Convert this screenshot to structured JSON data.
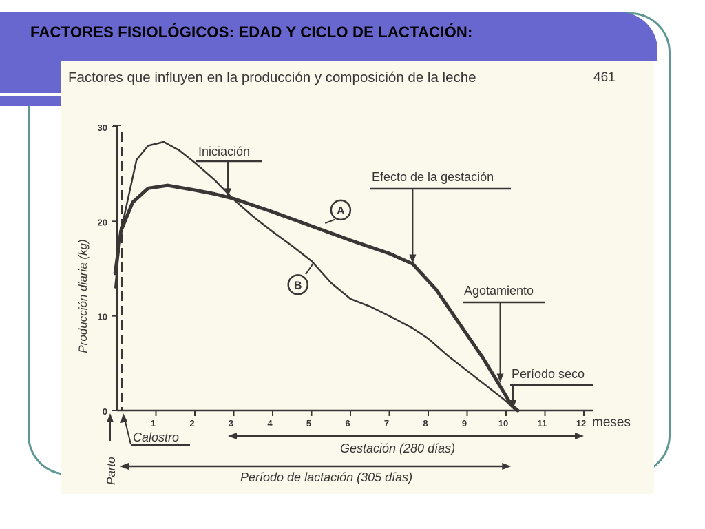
{
  "slide": {
    "title": "FACTORES FISIOLÓGICOS: EDAD Y CICLO DE LACTACIÓN:",
    "colors": {
      "title_bar": "#6767cf",
      "frame_outline": "#5f9795",
      "page": "#fbf8ec",
      "ink": "#3a3636"
    }
  },
  "book": {
    "header": "Factores que influyen en la producción y composición de la leche",
    "page_number": "461"
  },
  "chart_data": {
    "type": "line",
    "ylabel": "Producción diaria (kg)",
    "x_unit": "meses",
    "xlim": [
      0,
      12
    ],
    "ylim": [
      0,
      30
    ],
    "x_ticks": [
      "1",
      "2",
      "3",
      "4",
      "5",
      "6",
      "7",
      "8",
      "9",
      "10",
      "11",
      "12"
    ],
    "y_ticks": [
      "0",
      "10",
      "20",
      "30"
    ],
    "grid": false,
    "series": [
      {
        "name": "A",
        "label_x": 5.75,
        "label_y": 21.2,
        "points": [
          [
            -0.05,
            14.5
          ],
          [
            0.1,
            19.0
          ],
          [
            0.4,
            22.0
          ],
          [
            0.8,
            23.5
          ],
          [
            1.3,
            23.8
          ],
          [
            2.0,
            23.3
          ],
          [
            2.5,
            22.9
          ],
          [
            3.0,
            22.4
          ],
          [
            4.0,
            21.0
          ],
          [
            5.0,
            19.5
          ],
          [
            6.0,
            18.0
          ],
          [
            7.0,
            16.6
          ],
          [
            7.6,
            15.5
          ],
          [
            8.2,
            12.8
          ],
          [
            8.8,
            9.2
          ],
          [
            9.4,
            5.6
          ],
          [
            9.8,
            2.9
          ],
          [
            10.15,
            0.5
          ],
          [
            10.3,
            0.0
          ]
        ]
      },
      {
        "name": "B",
        "label_x": 4.65,
        "label_y": 13.3,
        "points": [
          [
            -0.05,
            13.0
          ],
          [
            0.1,
            19.0
          ],
          [
            0.5,
            26.5
          ],
          [
            0.8,
            28.0
          ],
          [
            1.2,
            28.4
          ],
          [
            1.6,
            27.5
          ],
          [
            2.0,
            26.2
          ],
          [
            2.5,
            24.4
          ],
          [
            3.0,
            22.3
          ],
          [
            3.5,
            20.5
          ],
          [
            4.0,
            18.9
          ],
          [
            4.5,
            17.4
          ],
          [
            5.0,
            15.8
          ],
          [
            5.5,
            13.5
          ],
          [
            6.0,
            11.8
          ],
          [
            6.5,
            11.0
          ],
          [
            7.0,
            10.0
          ],
          [
            7.6,
            8.7
          ],
          [
            8.0,
            7.6
          ],
          [
            8.5,
            5.8
          ],
          [
            9.0,
            4.2
          ],
          [
            9.5,
            2.6
          ],
          [
            10.0,
            1.0
          ],
          [
            10.2,
            0.2
          ]
        ]
      }
    ],
    "annotations": [
      {
        "text": "Iniciación",
        "target_x": 2.85,
        "target_y": 22.4
      },
      {
        "text": "Efecto de la gestación",
        "target_x": 7.6,
        "target_y": 15.4
      },
      {
        "text": "Agotamiento",
        "target_x": 9.85,
        "target_y": 2.8
      },
      {
        "text": "Período seco",
        "target_x": 10.3,
        "target_y": 0.0
      }
    ],
    "periods": [
      {
        "text": "Parto",
        "from_month": 0,
        "to_month": 0
      },
      {
        "text": "Calostro",
        "from_month": 0,
        "to_month": 0.15
      },
      {
        "text": "Gestación (280 días)",
        "from_month": 2.85,
        "to_month": 12
      },
      {
        "text": "Período de lactación (305 días)",
        "from_month": 0,
        "to_month": 10.2
      }
    ]
  }
}
